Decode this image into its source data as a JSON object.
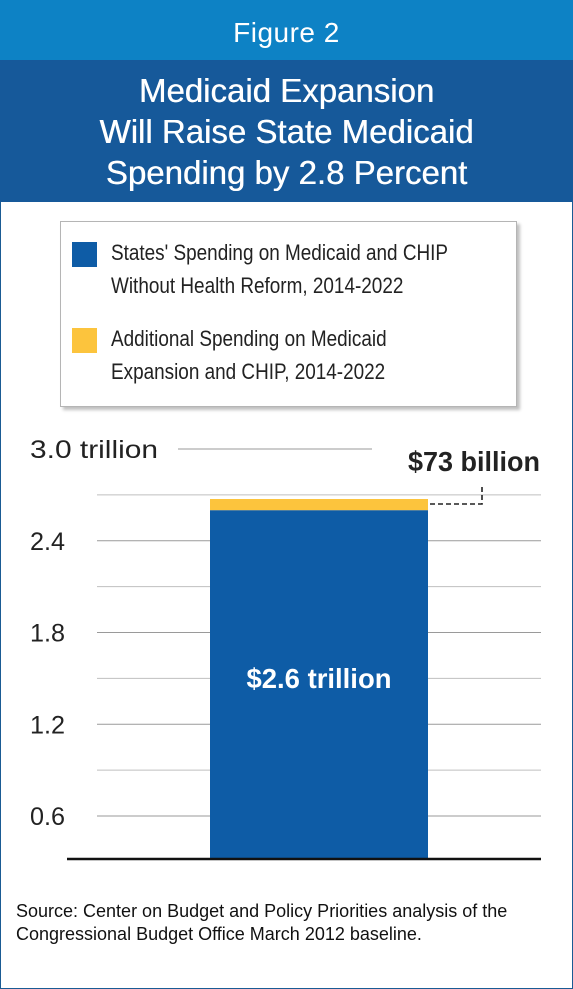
{
  "figure_label": "Figure 2",
  "title_lines": [
    "Medicaid Expansion",
    "Will Raise State Medicaid",
    "Spending by 2.8 Percent"
  ],
  "legend": [
    {
      "line1": "States' Spending on Medicaid and CHIP",
      "line2": "Without Health Reform, 2014-2022",
      "color": "#0e5ca6"
    },
    {
      "line1": "Additional Spending on Medicaid",
      "line2": "Expansion and CHIP, 2014-2022",
      "color": "#fcc43d"
    }
  ],
  "chart_data": {
    "type": "bar",
    "stacked": true,
    "categories": [
      ""
    ],
    "series": [
      {
        "name": "States' Spending on Medicaid and CHIP Without Health Reform, 2014-2022",
        "values": [
          2.6
        ],
        "color": "#0e5ca6"
      },
      {
        "name": "Additional Spending on Medicaid Expansion and CHIP, 2014-2022",
        "values": [
          0.073
        ],
        "color": "#fcc43d"
      }
    ],
    "ylim": [
      0.3,
      3.0
    ],
    "yticks": [
      0.6,
      1.2,
      1.8,
      2.4,
      3.0
    ],
    "ytick_labels": [
      "0.6",
      "1.2",
      "1.8",
      "2.4",
      "3.0 trillion"
    ],
    "minor_yticks": [
      0.9,
      1.5,
      2.1,
      2.7
    ],
    "grid": true,
    "bar_label": "$2.6 trillion",
    "annotation": "$73 billion"
  },
  "source": "Source: Center on Budget and Policy Priorities analysis of the Congressional Budget Office March 2012 baseline."
}
